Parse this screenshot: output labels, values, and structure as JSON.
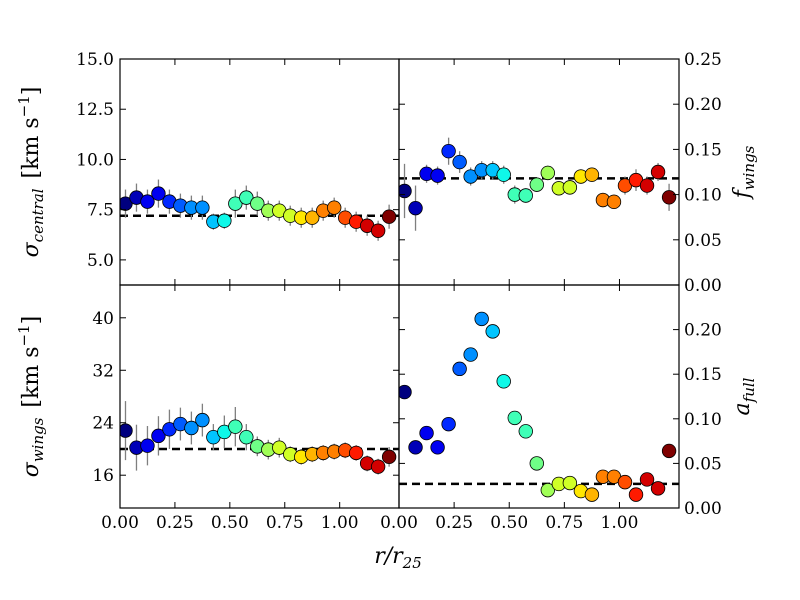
{
  "chart_data": [
    {
      "type": "scatter",
      "panel": "top-left",
      "ylabel": {
        "symbol": "σ",
        "sub": "central",
        "unit": "[km s",
        "unit_exp": "−1",
        "unit_end": "]"
      },
      "ylabel_side": "left",
      "xlim": [
        0.0,
        1.27
      ],
      "ylim": [
        3.75,
        15.0
      ],
      "yticks": [
        5.0,
        7.5,
        10.0,
        12.5,
        15.0
      ],
      "ytick_labels": [
        "5.0",
        "7.5",
        "10.0",
        "12.5",
        "15.0"
      ],
      "hline": 7.2,
      "points": [
        {
          "x": 0.025,
          "y": 7.8,
          "err": 0.7
        },
        {
          "x": 0.075,
          "y": 8.1,
          "err": 0.7
        },
        {
          "x": 0.125,
          "y": 7.9,
          "err": 0.6
        },
        {
          "x": 0.175,
          "y": 8.3,
          "err": 0.7
        },
        {
          "x": 0.225,
          "y": 7.9,
          "err": 0.6
        },
        {
          "x": 0.275,
          "y": 7.7,
          "err": 0.6
        },
        {
          "x": 0.325,
          "y": 7.6,
          "err": 0.6
        },
        {
          "x": 0.375,
          "y": 7.6,
          "err": 0.6
        },
        {
          "x": 0.425,
          "y": 6.9,
          "err": 0.4
        },
        {
          "x": 0.475,
          "y": 6.95,
          "err": 0.4
        },
        {
          "x": 0.525,
          "y": 7.8,
          "err": 0.7
        },
        {
          "x": 0.575,
          "y": 8.1,
          "err": 0.6
        },
        {
          "x": 0.625,
          "y": 7.8,
          "err": 0.6
        },
        {
          "x": 0.675,
          "y": 7.45,
          "err": 0.5
        },
        {
          "x": 0.725,
          "y": 7.45,
          "err": 0.5
        },
        {
          "x": 0.775,
          "y": 7.2,
          "err": 0.5
        },
        {
          "x": 0.825,
          "y": 7.1,
          "err": 0.5
        },
        {
          "x": 0.875,
          "y": 7.1,
          "err": 0.5
        },
        {
          "x": 0.925,
          "y": 7.45,
          "err": 0.5
        },
        {
          "x": 0.975,
          "y": 7.6,
          "err": 0.5
        },
        {
          "x": 1.025,
          "y": 7.1,
          "err": 0.5
        },
        {
          "x": 1.075,
          "y": 6.9,
          "err": 0.5
        },
        {
          "x": 1.125,
          "y": 6.7,
          "err": 0.5
        },
        {
          "x": 1.175,
          "y": 6.45,
          "err": 0.5
        },
        {
          "x": 1.225,
          "y": 7.15,
          "err": 0.6
        }
      ]
    },
    {
      "type": "scatter",
      "panel": "top-right",
      "ylabel": {
        "symbol": "f",
        "sub": "wings"
      },
      "ylabel_side": "right",
      "xlim": [
        0.0,
        1.27
      ],
      "ylim": [
        0.0,
        0.25
      ],
      "yticks": [
        0.0,
        0.05,
        0.1,
        0.15,
        0.2,
        0.25
      ],
      "ytick_labels": [
        "0.00",
        "0.05",
        "0.10",
        "0.15",
        "0.20",
        "0.25"
      ],
      "hline": 0.118,
      "points": [
        {
          "x": 0.025,
          "y": 0.104,
          "err": 0.03
        },
        {
          "x": 0.075,
          "y": 0.085,
          "err": 0.025
        },
        {
          "x": 0.125,
          "y": 0.123,
          "err": 0.01
        },
        {
          "x": 0.175,
          "y": 0.121,
          "err": 0.01
        },
        {
          "x": 0.225,
          "y": 0.148,
          "err": 0.015
        },
        {
          "x": 0.275,
          "y": 0.136,
          "err": 0.012
        },
        {
          "x": 0.325,
          "y": 0.12,
          "err": 0.01
        },
        {
          "x": 0.375,
          "y": 0.127,
          "err": 0.01
        },
        {
          "x": 0.425,
          "y": 0.127,
          "err": 0.01
        },
        {
          "x": 0.475,
          "y": 0.122,
          "err": 0.01
        },
        {
          "x": 0.525,
          "y": 0.1,
          "err": 0.01
        },
        {
          "x": 0.575,
          "y": 0.099,
          "err": 0.008
        },
        {
          "x": 0.625,
          "y": 0.111,
          "err": 0.008
        },
        {
          "x": 0.675,
          "y": 0.124,
          "err": 0.008
        },
        {
          "x": 0.725,
          "y": 0.107,
          "err": 0.008
        },
        {
          "x": 0.775,
          "y": 0.108,
          "err": 0.008
        },
        {
          "x": 0.825,
          "y": 0.12,
          "err": 0.008
        },
        {
          "x": 0.875,
          "y": 0.122,
          "err": 0.008
        },
        {
          "x": 0.925,
          "y": 0.094,
          "err": 0.008
        },
        {
          "x": 0.975,
          "y": 0.092,
          "err": 0.008
        },
        {
          "x": 1.025,
          "y": 0.11,
          "err": 0.01
        },
        {
          "x": 1.075,
          "y": 0.116,
          "err": 0.012
        },
        {
          "x": 1.125,
          "y": 0.11,
          "err": 0.01
        },
        {
          "x": 1.175,
          "y": 0.125,
          "err": 0.01
        },
        {
          "x": 1.225,
          "y": 0.097,
          "err": 0.015
        }
      ]
    },
    {
      "type": "scatter",
      "panel": "bottom-left",
      "ylabel": {
        "symbol": "σ",
        "sub": "wings",
        "unit": "[km s",
        "unit_exp": "−1",
        "unit_end": "]"
      },
      "ylabel_side": "left",
      "xlim": [
        0.0,
        1.27
      ],
      "ylim": [
        11.0,
        45.0
      ],
      "yticks": [
        16,
        24,
        32,
        40
      ],
      "ytick_labels": [
        "16",
        "24",
        "32",
        "40"
      ],
      "xticks": [
        0.0,
        0.25,
        0.5,
        0.75,
        1.0
      ],
      "xtick_labels": [
        "0.00",
        "0.25",
        "0.50",
        "0.75",
        "1.00"
      ],
      "hline": 20.0,
      "points": [
        {
          "x": 0.025,
          "y": 22.8,
          "err": 4.5
        },
        {
          "x": 0.075,
          "y": 20.2,
          "err": 3.5
        },
        {
          "x": 0.125,
          "y": 20.5,
          "err": 3.0
        },
        {
          "x": 0.175,
          "y": 22.0,
          "err": 3.0
        },
        {
          "x": 0.225,
          "y": 23.0,
          "err": 3.0
        },
        {
          "x": 0.275,
          "y": 23.8,
          "err": 2.5
        },
        {
          "x": 0.325,
          "y": 23.2,
          "err": 2.5
        },
        {
          "x": 0.375,
          "y": 24.4,
          "err": 2.5
        },
        {
          "x": 0.425,
          "y": 21.8,
          "err": 2.0
        },
        {
          "x": 0.475,
          "y": 22.6,
          "err": 2.5
        },
        {
          "x": 0.525,
          "y": 23.4,
          "err": 3.0
        },
        {
          "x": 0.575,
          "y": 21.8,
          "err": 2.0
        },
        {
          "x": 0.625,
          "y": 20.4,
          "err": 1.5
        },
        {
          "x": 0.675,
          "y": 19.9,
          "err": 1.5
        },
        {
          "x": 0.725,
          "y": 20.2,
          "err": 1.5
        },
        {
          "x": 0.775,
          "y": 19.2,
          "err": 1.2
        },
        {
          "x": 0.825,
          "y": 18.8,
          "err": 1.2
        },
        {
          "x": 0.875,
          "y": 19.2,
          "err": 1.2
        },
        {
          "x": 0.925,
          "y": 19.4,
          "err": 1.2
        },
        {
          "x": 0.975,
          "y": 19.6,
          "err": 1.2
        },
        {
          "x": 1.025,
          "y": 19.8,
          "err": 1.2
        },
        {
          "x": 1.075,
          "y": 19.4,
          "err": 1.2
        },
        {
          "x": 1.125,
          "y": 17.8,
          "err": 1.2
        },
        {
          "x": 1.175,
          "y": 17.3,
          "err": 1.2
        },
        {
          "x": 1.225,
          "y": 18.8,
          "err": 1.5
        }
      ]
    },
    {
      "type": "scatter",
      "panel": "bottom-right",
      "ylabel": {
        "symbol": "a",
        "sub": "full"
      },
      "ylabel_side": "right",
      "xlim": [
        0.0,
        1.27
      ],
      "ylim": [
        0.0,
        0.25
      ],
      "yticks": [
        0.0,
        0.05,
        0.1,
        0.15,
        0.2
      ],
      "ytick_labels": [
        "0.00",
        "0.05",
        "0.10",
        "0.15",
        "0.20"
      ],
      "xticks": [
        0.0,
        0.25,
        0.5,
        0.75,
        1.0
      ],
      "xtick_labels": [
        "0.00",
        "0.25",
        "0.50",
        "0.75",
        "1.00"
      ],
      "hline": 0.027,
      "points": [
        {
          "x": 0.025,
          "y": 0.13
        },
        {
          "x": 0.075,
          "y": 0.068
        },
        {
          "x": 0.125,
          "y": 0.084
        },
        {
          "x": 0.175,
          "y": 0.068
        },
        {
          "x": 0.225,
          "y": 0.094
        },
        {
          "x": 0.275,
          "y": 0.156
        },
        {
          "x": 0.325,
          "y": 0.172
        },
        {
          "x": 0.375,
          "y": 0.212
        },
        {
          "x": 0.425,
          "y": 0.198
        },
        {
          "x": 0.475,
          "y": 0.142
        },
        {
          "x": 0.525,
          "y": 0.101
        },
        {
          "x": 0.575,
          "y": 0.086
        },
        {
          "x": 0.625,
          "y": 0.05
        },
        {
          "x": 0.675,
          "y": 0.02
        },
        {
          "x": 0.725,
          "y": 0.027
        },
        {
          "x": 0.775,
          "y": 0.028
        },
        {
          "x": 0.825,
          "y": 0.019
        },
        {
          "x": 0.875,
          "y": 0.015
        },
        {
          "x": 0.925,
          "y": 0.035
        },
        {
          "x": 0.975,
          "y": 0.035
        },
        {
          "x": 1.025,
          "y": 0.029
        },
        {
          "x": 1.075,
          "y": 0.015
        },
        {
          "x": 1.125,
          "y": 0.032
        },
        {
          "x": 1.175,
          "y": 0.022
        },
        {
          "x": 1.225,
          "y": 0.064
        }
      ]
    }
  ],
  "shared_xlabel": {
    "main": "r/r",
    "sub": "25"
  },
  "colormap": [
    "#00007f",
    "#0000b7",
    "#0000f1",
    "#0028ff",
    "#005cff",
    "#0090ff",
    "#00c4ff",
    "#0ff8e8",
    "#3fffb7",
    "#6fff87",
    "#a0ff57",
    "#d0ff27",
    "#ffe700",
    "#ffb400",
    "#ff8000",
    "#ff4d00",
    "#ff1a00",
    "#d30000",
    "#7f0000"
  ]
}
